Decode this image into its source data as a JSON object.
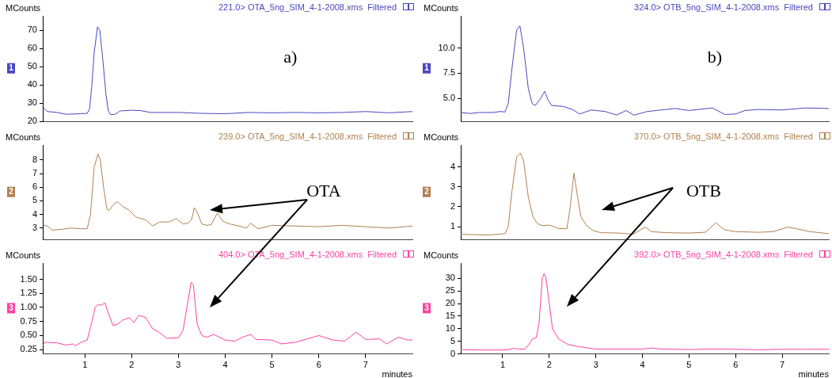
{
  "chart_data": [
    {
      "type": "line",
      "ylabel": "MCounts",
      "annotations": [
        "221.0> OTA_5ng_SIM_4-1-2008.xms  Filtered",
        "1",
        "a)"
      ],
      "color": "#4848c0",
      "marker": "none",
      "line_style": "solid",
      "legend": false,
      "grid": false,
      "tick_labels": "y",
      "xlim": [
        0.1,
        8
      ],
      "ylim": [
        20,
        78
      ],
      "yticks": [
        20,
        30,
        40,
        50,
        60,
        70
      ],
      "x": [
        0.12,
        0.2,
        0.4,
        0.6,
        0.9,
        1.05,
        1.1,
        1.15,
        1.2,
        1.27,
        1.32,
        1.38,
        1.45,
        1.5,
        1.55,
        1.65,
        1.75,
        2.0,
        2.2,
        2.4,
        3,
        3.5,
        4,
        4.5,
        5,
        5.5,
        6,
        6.5,
        7,
        7.5,
        8
      ],
      "values": [
        27.5,
        25.5,
        25,
        24,
        24.3,
        24.5,
        27,
        40,
        58,
        72,
        70,
        55,
        35,
        26,
        23.8,
        24,
        25.8,
        26.2,
        26,
        25,
        25,
        24.5,
        24.3,
        25,
        24.8,
        25,
        24.8,
        25,
        25.5,
        24.8,
        25.5
      ]
    },
    {
      "type": "line",
      "ylabel": "MCounts",
      "annotations": [
        "324.0> OTB_5ng_SIM_4-1-2008.xms  Filtered",
        "1",
        "b)"
      ],
      "color": "#4848c0",
      "marker": "none",
      "line_style": "solid",
      "legend": false,
      "grid": false,
      "tick_labels": "y",
      "xlim": [
        0.1,
        8
      ],
      "ylim": [
        2.7,
        13.2
      ],
      "yticks": [
        {
          "value": 5,
          "label": "5.0"
        },
        {
          "value": 7.5,
          "label": "7.5"
        },
        {
          "value": 10,
          "label": "10.0"
        }
      ],
      "x": [
        0.1,
        0.3,
        0.5,
        0.8,
        0.95,
        1.05,
        1.12,
        1.2,
        1.3,
        1.37,
        1.45,
        1.55,
        1.63,
        1.7,
        1.8,
        1.9,
        1.98,
        2.05,
        2.3,
        2.5,
        2.65,
        2.9,
        3.2,
        3.45,
        3.65,
        3.82,
        4.1,
        4.5,
        4.7,
        5,
        5.5,
        5.77,
        6.0,
        6.2,
        6.5,
        7,
        7.5,
        8
      ],
      "values": [
        3.6,
        3.5,
        3.6,
        3.6,
        3.7,
        3.65,
        4.5,
        8,
        11.8,
        12.2,
        10,
        6,
        4.5,
        4.3,
        4.9,
        5.7,
        4.8,
        4.3,
        4.2,
        3.9,
        3.45,
        3.85,
        3.7,
        3.35,
        3.8,
        3.33,
        3.7,
        3.9,
        4.0,
        3.8,
        4.05,
        3.4,
        3.45,
        3.8,
        3.9,
        3.85,
        4.05,
        4.0
      ]
    },
    {
      "type": "line",
      "ylabel": "MCounts",
      "annotations": [
        "239.0> OTA_5ng_SIM_4-1-2008.xms  Filtered",
        "2",
        "OTA"
      ],
      "color": "#b08050",
      "marker": "none",
      "line_style": "solid",
      "legend": false,
      "grid": false,
      "tick_labels": "y",
      "xlim": [
        0.1,
        8
      ],
      "ylim": [
        2.15,
        9.1
      ],
      "yticks": [
        3,
        4,
        5,
        6,
        7,
        8
      ],
      "x": [
        0.12,
        0.2,
        0.3,
        0.5,
        0.7,
        0.9,
        1.05,
        1.12,
        1.2,
        1.28,
        1.33,
        1.4,
        1.47,
        1.52,
        1.6,
        1.7,
        1.8,
        1.95,
        2.1,
        2.3,
        2.45,
        2.6,
        2.8,
        2.95,
        3.1,
        3.2,
        3.28,
        3.34,
        3.42,
        3.5,
        3.6,
        3.7,
        3.83,
        3.95,
        4.1,
        4.3,
        4.45,
        4.54,
        4.7,
        5,
        5.5,
        6,
        6.5,
        7,
        7.5,
        8
      ],
      "values": [
        3.2,
        3.15,
        2.85,
        2.9,
        3.0,
        2.95,
        2.95,
        4,
        7.5,
        8.45,
        8,
        6,
        4.4,
        4.3,
        4.7,
        4.95,
        4.6,
        4.3,
        3.8,
        3.6,
        3.15,
        3.45,
        3.45,
        3.7,
        3.3,
        3.35,
        3.6,
        4.5,
        4.0,
        3.3,
        3.2,
        3.25,
        4.1,
        3.5,
        3.3,
        3.15,
        3.0,
        3.35,
        2.95,
        3.2,
        3.15,
        3.1,
        3.2,
        3.1,
        3.0,
        3.15
      ]
    },
    {
      "type": "line",
      "ylabel": "MCounts",
      "annotations": [
        "370.0> OTB_5ng_SIM_4-1-2008.xms  Filtered",
        "2",
        "OTB"
      ],
      "color": "#b08050",
      "marker": "none",
      "line_style": "solid",
      "legend": false,
      "grid": false,
      "tick_labels": "y",
      "xlim": [
        0.1,
        8
      ],
      "ylim": [
        0.35,
        5.1
      ],
      "yticks": [
        1,
        2,
        3,
        4
      ],
      "x": [
        0.1,
        0.4,
        0.7,
        0.9,
        1.05,
        1.12,
        1.2,
        1.3,
        1.38,
        1.45,
        1.55,
        1.65,
        1.75,
        1.85,
        2.0,
        2.1,
        2.2,
        2.38,
        2.45,
        2.53,
        2.6,
        2.68,
        2.8,
        2.95,
        3.1,
        3.5,
        3.8,
        4.06,
        4.2,
        4.5,
        5,
        5.35,
        5.58,
        5.75,
        6,
        6.5,
        6.8,
        7.12,
        7.3,
        7.6,
        8
      ],
      "values": [
        0.62,
        0.6,
        0.58,
        0.62,
        0.65,
        1.0,
        2.8,
        4.5,
        4.7,
        4.3,
        2.5,
        1.5,
        1.15,
        1.05,
        1.08,
        1.0,
        0.9,
        0.9,
        2.0,
        3.7,
        2.6,
        1.5,
        1.05,
        0.8,
        0.7,
        0.68,
        0.62,
        0.98,
        0.75,
        0.7,
        0.68,
        0.72,
        1.2,
        0.85,
        0.75,
        0.72,
        0.75,
        0.98,
        0.9,
        0.75,
        0.65
      ]
    },
    {
      "type": "line",
      "ylabel": "MCounts",
      "xlabel": "minutes",
      "annotations": [
        "404.0> OTA_5ng_SIM_4-1-2008.xms  Filtered",
        "3"
      ],
      "color": "#ff40a0",
      "marker": "none",
      "line_style": "solid",
      "legend": false,
      "grid": false,
      "xlim": [
        0.1,
        8
      ],
      "xticks": [
        1,
        2,
        3,
        4,
        5,
        6,
        7
      ],
      "ylim": [
        0.17,
        1.79
      ],
      "yticks": [
        {
          "value": 0.25,
          "label": "0.25"
        },
        {
          "value": 0.5,
          "label": "0.50"
        },
        {
          "value": 0.75,
          "label": "0.75"
        },
        {
          "value": 1,
          "label": "1.00"
        },
        {
          "value": 1.25,
          "label": "1.25"
        },
        {
          "value": 1.5,
          "label": "1.50"
        }
      ],
      "x": [
        0.1,
        0.15,
        0.4,
        0.6,
        0.75,
        0.8,
        0.9,
        1.05,
        1.15,
        1.22,
        1.28,
        1.35,
        1.43,
        1.5,
        1.6,
        1.7,
        1.8,
        1.95,
        2.05,
        2.15,
        2.3,
        2.45,
        2.6,
        2.75,
        3.0,
        3.1,
        3.27,
        3.32,
        3.4,
        3.5,
        3.6,
        3.75,
        4,
        4.2,
        4.4,
        4.55,
        4.65,
        5,
        5.2,
        5.5,
        6,
        6.3,
        6.55,
        6.8,
        7,
        7.3,
        7.45,
        7.7,
        7.9,
        8
      ],
      "values": [
        0.33,
        0.38,
        0.37,
        0.33,
        0.35,
        0.32,
        0.37,
        0.42,
        0.75,
        1.0,
        1.05,
        1.04,
        1.08,
        0.9,
        0.68,
        0.7,
        0.77,
        0.82,
        0.73,
        0.86,
        0.82,
        0.62,
        0.55,
        0.45,
        0.46,
        0.6,
        1.45,
        1.4,
        0.7,
        0.5,
        0.47,
        0.52,
        0.42,
        0.4,
        0.48,
        0.52,
        0.43,
        0.42,
        0.35,
        0.38,
        0.5,
        0.42,
        0.4,
        0.56,
        0.43,
        0.44,
        0.35,
        0.47,
        0.42,
        0.42
      ]
    },
    {
      "type": "line",
      "ylabel": "MCounts",
      "xlabel": "minutes",
      "annotations": [
        "392.0> OTB_5ng_SIM_4-1-2008.xms  Filtered",
        "3"
      ],
      "color": "#ff40a0",
      "marker": "none",
      "line_style": "solid",
      "legend": false,
      "grid": false,
      "xlim": [
        0.1,
        8
      ],
      "xticks": [
        1,
        2,
        3,
        4,
        5,
        6,
        7
      ],
      "ylim": [
        0,
        36
      ],
      "yticks": [
        0,
        5,
        10,
        15,
        20,
        25,
        30
      ],
      "x": [
        0.1,
        0.5,
        1.0,
        1.1,
        1.25,
        1.35,
        1.48,
        1.55,
        1.63,
        1.72,
        1.78,
        1.85,
        1.89,
        1.93,
        2.0,
        2.07,
        2.2,
        2.4,
        2.6,
        2.8,
        3.0,
        3.5,
        4.0,
        4.2,
        4.4,
        5,
        5.5,
        6,
        6.5,
        7,
        7.5,
        8
      ],
      "values": [
        1.8,
        1.6,
        1.6,
        1.7,
        2.3,
        1.9,
        2.0,
        3.5,
        5.8,
        6.5,
        12,
        30,
        31.8,
        30,
        20,
        10,
        6,
        3.8,
        3.0,
        2.5,
        2.0,
        2.0,
        2.0,
        2.4,
        2.0,
        1.8,
        2.0,
        1.9,
        1.7,
        1.9,
        1.9,
        1.9
      ]
    }
  ]
}
